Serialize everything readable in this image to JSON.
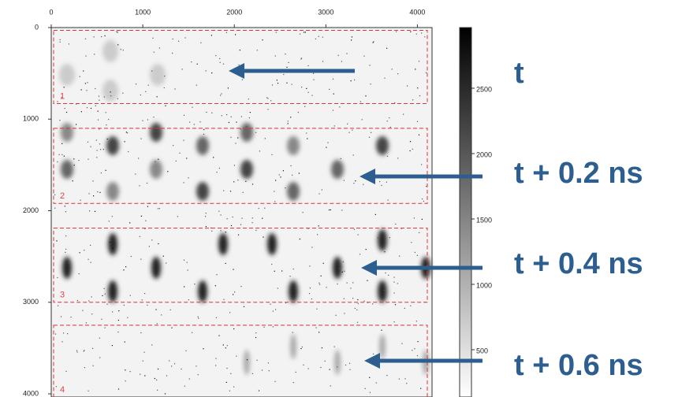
{
  "chart_data": {
    "type": "heatmap",
    "xlim": [
      0,
      4160
    ],
    "xticks": [
      0,
      1000,
      2000,
      3000,
      4000
    ],
    "ylim": [
      0,
      4000
    ],
    "yticks": [
      0,
      1000,
      2000,
      3000,
      4000
    ],
    "colorbar": {
      "lim": [
        0,
        3000
      ],
      "ticks": [
        500,
        1000,
        1500,
        2000,
        2500
      ]
    },
    "regions": [
      {
        "label": "1",
        "yrange": [
          30,
          830
        ]
      },
      {
        "label": "2",
        "yrange": [
          1100,
          1920
        ]
      },
      {
        "label": "3",
        "yrange": [
          2190,
          3000
        ]
      },
      {
        "label": "4",
        "yrange": [
          3250,
          4040
        ]
      }
    ],
    "annotations": [
      "t",
      "t + 0.2 ns",
      "t + 0.4 ns",
      "t + 0.6 ns"
    ]
  }
}
